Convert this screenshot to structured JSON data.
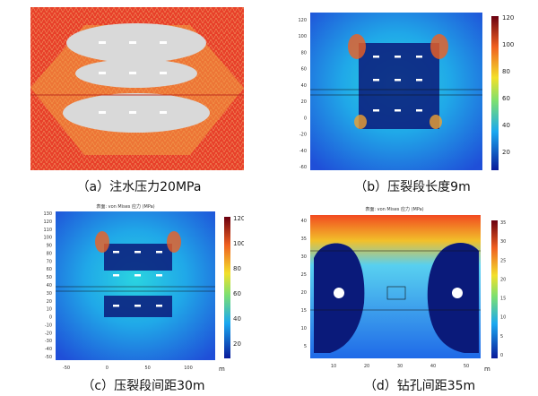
{
  "captions": {
    "a": "（a）注水压力20MPa",
    "b": "（b）压裂段长度9m",
    "c": "（c）压裂段间距30m",
    "d": "（d）钻孔间距35m"
  },
  "plot_titles": {
    "c": "表面: von Mises 应力 (MPa)",
    "d": "表面: von Mises 应力 (MPa)"
  },
  "unit_label": "m",
  "colorbar_ticks": {
    "b": [
      "120",
      "100",
      "80",
      "60",
      "40",
      "20"
    ],
    "c": [
      "120",
      "100",
      "80",
      "60",
      "40",
      "20"
    ],
    "d": [
      "35",
      "30",
      "25",
      "20",
      "15",
      "10",
      "5",
      "0"
    ]
  },
  "axes": {
    "b": {
      "y_ticks": [
        "120",
        "100",
        "80",
        "60",
        "40",
        "20",
        "0",
        "-20",
        "-40",
        "-60"
      ]
    },
    "c": {
      "y_ticks": [
        "130",
        "120",
        "110",
        "100",
        "90",
        "80",
        "70",
        "60",
        "50",
        "40",
        "30",
        "20",
        "10",
        "0",
        "-10",
        "-20",
        "-30",
        "-40",
        "-50"
      ],
      "x_ticks": [
        "-50",
        "0",
        "50",
        "100"
      ]
    },
    "d": {
      "y_ticks": [
        "40",
        "35",
        "30",
        "25",
        "20",
        "15",
        "10",
        "5"
      ],
      "x_ticks": [
        "10",
        "20",
        "30",
        "40",
        "50"
      ]
    }
  },
  "colors": {
    "mesh_red": "#e8402a",
    "mesh_orange": "#f0a040",
    "damage_gray": "#d9d9d9",
    "field_blue": "#1f4fd8",
    "deep_blue": "#0a1a7a"
  }
}
